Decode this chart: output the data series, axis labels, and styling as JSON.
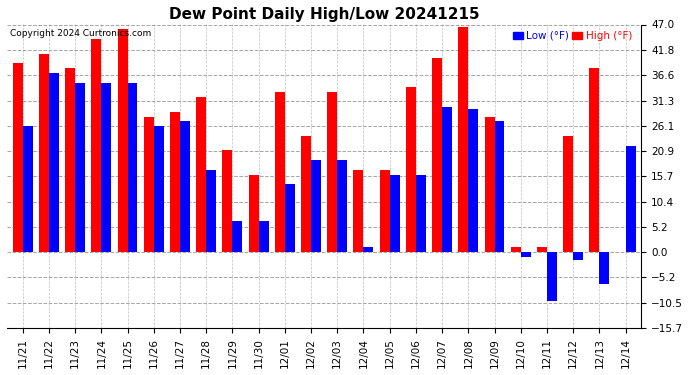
{
  "title": "Dew Point Daily High/Low 20241215",
  "copyright": "Copyright 2024 Curtronics.com",
  "legend_low": "Low (°F)",
  "legend_high": "High (°F)",
  "color_low": "#0000ff",
  "color_high": "#ff0000",
  "background_color": "#ffffff",
  "ylim": [
    -15.7,
    47.0
  ],
  "yticks": [
    -15.7,
    -10.5,
    -5.2,
    -0.0,
    5.2,
    10.4,
    15.7,
    20.9,
    26.1,
    31.3,
    36.6,
    41.8,
    47.0
  ],
  "dates": [
    "11/21",
    "11/22",
    "11/23",
    "11/24",
    "11/25",
    "11/26",
    "11/27",
    "11/28",
    "11/29",
    "11/30",
    "12/01",
    "12/02",
    "12/03",
    "12/04",
    "12/05",
    "12/06",
    "12/07",
    "12/08",
    "12/09",
    "12/10",
    "12/11",
    "12/12",
    "12/13",
    "12/14"
  ],
  "high_values": [
    39.0,
    41.0,
    38.0,
    44.0,
    46.0,
    28.0,
    29.0,
    32.0,
    21.0,
    16.0,
    33.0,
    24.0,
    33.0,
    17.0,
    17.0,
    34.0,
    40.0,
    46.5,
    28.0,
    1.0,
    1.0,
    24.0,
    38.0,
    0.0
  ],
  "low_values": [
    26.0,
    37.0,
    35.0,
    35.0,
    35.0,
    26.0,
    27.0,
    17.0,
    6.5,
    6.5,
    14.0,
    19.0,
    19.0,
    1.0,
    16.0,
    16.0,
    30.0,
    29.5,
    27.0,
    -1.0,
    -10.0,
    -1.5,
    -6.5,
    22.0
  ]
}
